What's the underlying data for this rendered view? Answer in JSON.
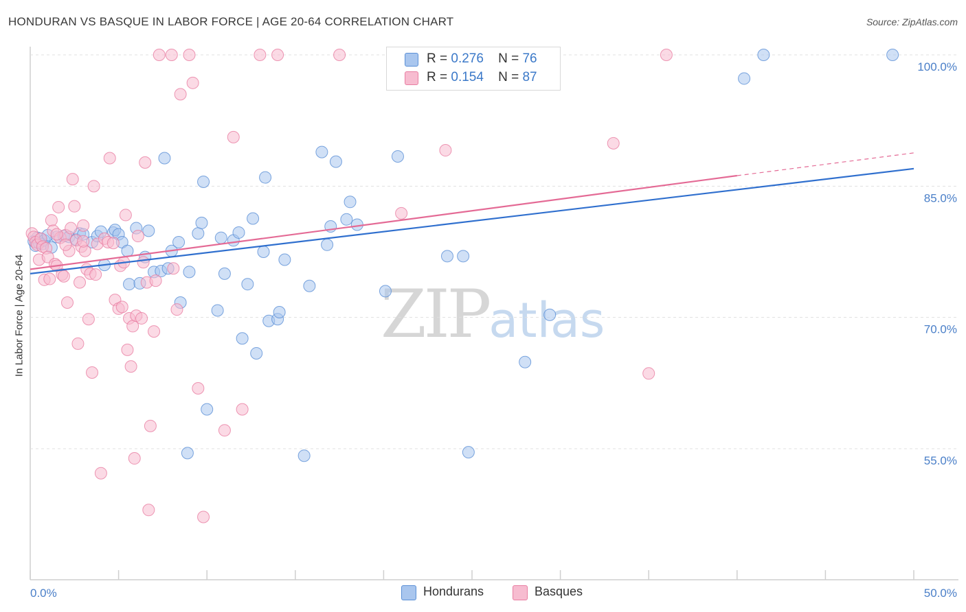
{
  "header": {
    "title": "HONDURAN VS BASQUE IN LABOR FORCE | AGE 20-64 CORRELATION CHART",
    "source": "Source: ZipAtlas.com"
  },
  "legend": {
    "rows": [
      {
        "r_label": "R =",
        "r_value": "0.276",
        "n_label": "N =",
        "n_value": "76"
      },
      {
        "r_label": "R =",
        "r_value": "0.154",
        "n_label": "N =",
        "n_value": "87"
      }
    ],
    "series": [
      "Hondurans",
      "Basques"
    ]
  },
  "watermark": {
    "zip": "ZIP",
    "atlas": "atlas"
  },
  "colors": {
    "hondurans_fill": "#a9c6ee",
    "hondurans_stroke": "#5a8fd6",
    "hondurans_line": "#2f6fce",
    "basques_fill": "#f7bcd0",
    "basques_stroke": "#e87da1",
    "basques_line": "#e46a95",
    "grid": "#e0e0e0",
    "tick_text": "#4a7fc8"
  },
  "chart_data": {
    "type": "scatter",
    "title": "HONDURAN VS BASQUE IN LABOR FORCE | AGE 20-64 CORRELATION CHART",
    "xlabel": "",
    "ylabel": "In Labor Force | Age 20-64",
    "xlim": [
      0,
      50
    ],
    "ylim": [
      40,
      102
    ],
    "x_ticks_labels": [
      "0.0%",
      "50.0%"
    ],
    "y_ticks": [
      55,
      70,
      85,
      100
    ],
    "y_tick_labels": [
      "55.0%",
      "70.0%",
      "85.0%",
      "100.0%"
    ],
    "grid": "horizontal dashed",
    "series": [
      {
        "name": "Hondurans",
        "r": 0.276,
        "n": 76,
        "trend": {
          "x": [
            0,
            50
          ],
          "y": [
            75.0,
            87.0
          ]
        },
        "points": [
          [
            0.2,
            78.7
          ],
          [
            0.3,
            78.2
          ],
          [
            0.4,
            79.1
          ],
          [
            0.5,
            78.5
          ],
          [
            0.6,
            79.0
          ],
          [
            0.7,
            78.4
          ],
          [
            0.8,
            78.8
          ],
          [
            1.0,
            79.4
          ],
          [
            1.2,
            78.0
          ],
          [
            1.5,
            79.2
          ],
          [
            1.9,
            79.3
          ],
          [
            2.2,
            79.2
          ],
          [
            2.6,
            78.9
          ],
          [
            2.8,
            79.6
          ],
          [
            3.0,
            79.5
          ],
          [
            3.5,
            78.6
          ],
          [
            3.8,
            79.3
          ],
          [
            4.0,
            79.8
          ],
          [
            4.2,
            76.0
          ],
          [
            4.7,
            79.7
          ],
          [
            4.8,
            80.0
          ],
          [
            5.0,
            79.5
          ],
          [
            5.2,
            78.6
          ],
          [
            5.5,
            77.6
          ],
          [
            5.6,
            73.8
          ],
          [
            6.0,
            80.2
          ],
          [
            6.2,
            73.9
          ],
          [
            6.5,
            76.9
          ],
          [
            6.7,
            79.9
          ],
          [
            7.0,
            75.2
          ],
          [
            7.4,
            75.3
          ],
          [
            7.6,
            88.2
          ],
          [
            7.8,
            75.6
          ],
          [
            8.0,
            77.6
          ],
          [
            8.4,
            78.6
          ],
          [
            8.5,
            71.7
          ],
          [
            8.9,
            54.5
          ],
          [
            9.0,
            75.2
          ],
          [
            9.5,
            79.6
          ],
          [
            9.7,
            80.8
          ],
          [
            9.8,
            85.5
          ],
          [
            10.0,
            59.5
          ],
          [
            10.6,
            70.8
          ],
          [
            10.8,
            79.1
          ],
          [
            11.0,
            75.0
          ],
          [
            11.5,
            78.8
          ],
          [
            11.8,
            79.7
          ],
          [
            12.0,
            67.6
          ],
          [
            12.3,
            73.8
          ],
          [
            12.6,
            81.3
          ],
          [
            12.8,
            65.9
          ],
          [
            13.2,
            77.5
          ],
          [
            13.3,
            86.0
          ],
          [
            13.5,
            69.6
          ],
          [
            14.0,
            69.8
          ],
          [
            14.1,
            70.6
          ],
          [
            14.4,
            76.6
          ],
          [
            15.5,
            54.2
          ],
          [
            15.8,
            73.6
          ],
          [
            16.5,
            88.9
          ],
          [
            16.8,
            78.3
          ],
          [
            17.0,
            80.4
          ],
          [
            17.3,
            87.8
          ],
          [
            17.9,
            81.2
          ],
          [
            18.1,
            83.2
          ],
          [
            18.5,
            80.6
          ],
          [
            20.1,
            73.0
          ],
          [
            20.8,
            88.4
          ],
          [
            23.6,
            77.0
          ],
          [
            24.5,
            77.0
          ],
          [
            24.8,
            54.6
          ],
          [
            28.0,
            64.9
          ],
          [
            29.4,
            70.3
          ],
          [
            40.4,
            97.3
          ],
          [
            41.5,
            100.0
          ],
          [
            48.8,
            100.0
          ]
        ]
      },
      {
        "name": "Basques",
        "r": 0.154,
        "n": 87,
        "trend": {
          "x": [
            0,
            40
          ],
          "y": [
            75.5,
            86.2
          ]
        },
        "trend_dashed": {
          "x": [
            40,
            50
          ],
          "y": [
            86.2,
            88.8
          ]
        },
        "points": [
          [
            0.1,
            79.6
          ],
          [
            0.2,
            79.2
          ],
          [
            0.3,
            78.6
          ],
          [
            0.4,
            78.3
          ],
          [
            0.5,
            76.6
          ],
          [
            0.6,
            79.0
          ],
          [
            0.7,
            78.1
          ],
          [
            0.8,
            74.3
          ],
          [
            0.9,
            77.9
          ],
          [
            1.0,
            76.9
          ],
          [
            1.1,
            74.4
          ],
          [
            1.2,
            81.1
          ],
          [
            1.3,
            79.9
          ],
          [
            1.4,
            76.1
          ],
          [
            1.5,
            75.9
          ],
          [
            1.6,
            82.6
          ],
          [
            1.7,
            79.1
          ],
          [
            1.8,
            74.9
          ],
          [
            1.9,
            74.7
          ],
          [
            2.0,
            79.4
          ],
          [
            2.1,
            71.7
          ],
          [
            2.2,
            77.6
          ],
          [
            2.3,
            80.2
          ],
          [
            2.4,
            85.8
          ],
          [
            2.5,
            82.7
          ],
          [
            2.6,
            78.8
          ],
          [
            2.7,
            67.0
          ],
          [
            2.8,
            74.0
          ],
          [
            2.9,
            78.1
          ],
          [
            3.0,
            80.5
          ],
          [
            3.1,
            77.6
          ],
          [
            3.2,
            75.5
          ],
          [
            3.3,
            69.8
          ],
          [
            3.4,
            75.0
          ],
          [
            3.5,
            63.7
          ],
          [
            3.6,
            85.0
          ],
          [
            3.7,
            74.9
          ],
          [
            3.8,
            78.4
          ],
          [
            4.0,
            52.2
          ],
          [
            4.2,
            79.0
          ],
          [
            4.4,
            78.6
          ],
          [
            4.5,
            88.2
          ],
          [
            4.7,
            78.5
          ],
          [
            4.8,
            72.0
          ],
          [
            5.0,
            71.0
          ],
          [
            5.1,
            75.9
          ],
          [
            5.2,
            71.2
          ],
          [
            5.3,
            76.3
          ],
          [
            5.4,
            81.7
          ],
          [
            5.5,
            66.3
          ],
          [
            5.6,
            69.9
          ],
          [
            5.7,
            64.4
          ],
          [
            5.8,
            69.0
          ],
          [
            5.9,
            53.9
          ],
          [
            6.0,
            70.2
          ],
          [
            6.1,
            79.3
          ],
          [
            6.3,
            69.9
          ],
          [
            6.4,
            76.3
          ],
          [
            6.5,
            87.7
          ],
          [
            6.6,
            74.0
          ],
          [
            6.7,
            48.0
          ],
          [
            6.8,
            57.6
          ],
          [
            7.0,
            68.4
          ],
          [
            7.1,
            74.2
          ],
          [
            7.3,
            100.0
          ],
          [
            8.0,
            100.0
          ],
          [
            8.1,
            75.6
          ],
          [
            8.3,
            70.9
          ],
          [
            8.5,
            95.5
          ],
          [
            9.0,
            100.0
          ],
          [
            9.2,
            96.8
          ],
          [
            9.5,
            61.9
          ],
          [
            9.8,
            47.2
          ],
          [
            11.0,
            57.1
          ],
          [
            11.5,
            90.6
          ],
          [
            12.0,
            59.5
          ],
          [
            13.0,
            100.0
          ],
          [
            14.0,
            100.0
          ],
          [
            17.5,
            100.0
          ],
          [
            21.0,
            81.9
          ],
          [
            23.5,
            89.1
          ],
          [
            33.0,
            89.9
          ],
          [
            35.0,
            63.6
          ],
          [
            36.0,
            100.0
          ],
          [
            1.5,
            79.5
          ],
          [
            2.0,
            78.3
          ],
          [
            3.0,
            78.7
          ]
        ]
      }
    ]
  }
}
